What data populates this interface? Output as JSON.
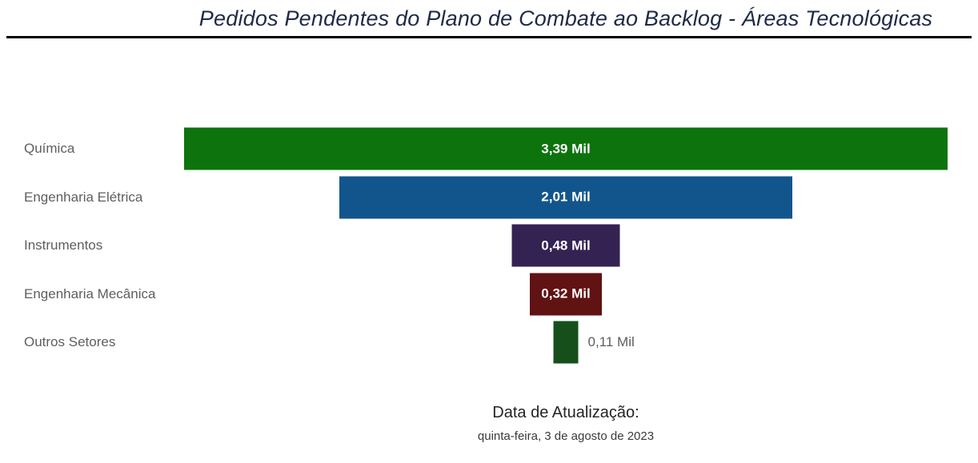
{
  "chart_data": {
    "type": "bar",
    "subtype": "funnel",
    "title": "Pedidos Pendentes do Plano de Combate ao Backlog - Áreas Tecnológicas",
    "categories": [
      "Química",
      "Engenharia Elétrica",
      "Instrumentos",
      "Engenharia Mecânica",
      "Outros Setores"
    ],
    "values": [
      3.39,
      2.01,
      0.48,
      0.32,
      0.11
    ],
    "value_labels": [
      "3,39 Mil",
      "2,01 Mil",
      "0,48 Mil",
      "0,32 Mil",
      "0,11 Mil"
    ],
    "colors": [
      "#0d730d",
      "#12558d",
      "#342253",
      "#611212",
      "#174f1b"
    ],
    "unit": "Mil",
    "orientation": "horizontal-centered",
    "value_label_color_inside": "#ffffff",
    "value_label_color_outside": "#605e5c",
    "category_label_color": "#605e5c",
    "legend": "off",
    "grid": "off",
    "xlabel": "",
    "ylabel": ""
  },
  "footer": {
    "update_label": "Data de Atualização:",
    "update_date": "quinta-feira, 3 de agosto de 2023"
  }
}
